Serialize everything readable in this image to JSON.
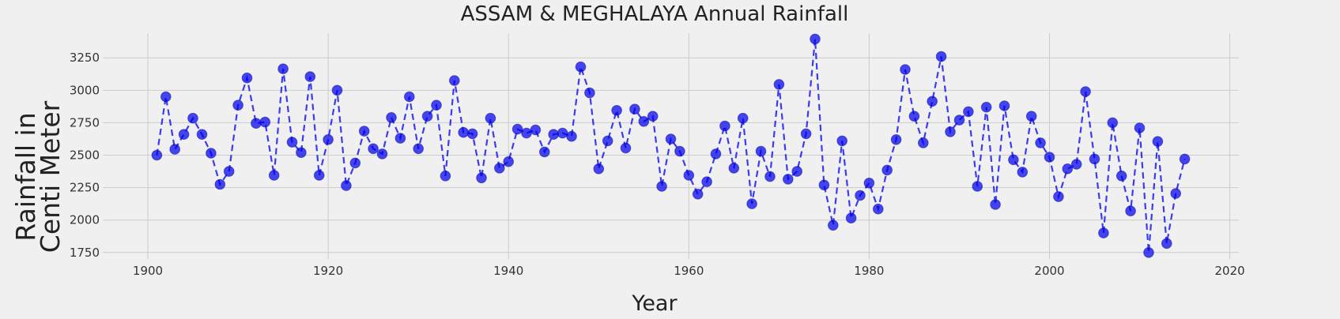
{
  "chart_data": {
    "type": "line",
    "title": "ASSAM & MEGHALAYA Annual Rainfall",
    "xlabel": "Year",
    "ylabel_lines": [
      "Rainfall in",
      "Centi Meter"
    ],
    "xlim": [
      1895,
      2021
    ],
    "ylim": [
      1700,
      3440
    ],
    "xticks": [
      1900,
      1920,
      1940,
      1960,
      1980,
      2000,
      2020
    ],
    "yticks": [
      1750,
      2000,
      2250,
      2500,
      2750,
      3000,
      3250
    ],
    "grid": true,
    "line_style": "dashed",
    "marker": "circle",
    "series_color": "#0000ee",
    "x": [
      1901,
      1902,
      1903,
      1904,
      1905,
      1906,
      1907,
      1908,
      1909,
      1910,
      1911,
      1912,
      1913,
      1914,
      1915,
      1916,
      1917,
      1918,
      1919,
      1920,
      1921,
      1922,
      1923,
      1924,
      1925,
      1926,
      1927,
      1928,
      1929,
      1930,
      1931,
      1932,
      1933,
      1934,
      1935,
      1936,
      1937,
      1938,
      1939,
      1940,
      1941,
      1942,
      1943,
      1944,
      1945,
      1946,
      1947,
      1948,
      1949,
      1950,
      1951,
      1952,
      1953,
      1954,
      1955,
      1956,
      1957,
      1958,
      1959,
      1960,
      1961,
      1962,
      1963,
      1964,
      1965,
      1966,
      1967,
      1968,
      1969,
      1970,
      1971,
      1972,
      1973,
      1974,
      1975,
      1976,
      1977,
      1978,
      1979,
      1980,
      1981,
      1982,
      1983,
      1984,
      1985,
      1986,
      1987,
      1988,
      1989,
      1990,
      1991,
      1992,
      1993,
      1994,
      1995,
      1996,
      1997,
      1998,
      1999,
      2000,
      2001,
      2002,
      2003,
      2004,
      2005,
      2006,
      2007,
      2008,
      2009,
      2010,
      2011,
      2012,
      2013,
      2014,
      2015
    ],
    "y": [
      2500,
      2950,
      2545,
      2660,
      2785,
      2660,
      2515,
      2275,
      2375,
      2885,
      3095,
      2745,
      2755,
      2345,
      3165,
      2600,
      2520,
      3105,
      2345,
      2620,
      3000,
      2265,
      2440,
      2685,
      2550,
      2510,
      2790,
      2630,
      2950,
      2550,
      2800,
      2885,
      2340,
      3075,
      2675,
      2665,
      2325,
      2785,
      2400,
      2450,
      2700,
      2670,
      2695,
      2525,
      2660,
      2670,
      2645,
      3180,
      2980,
      2395,
      2610,
      2845,
      2555,
      2855,
      2760,
      2800,
      2260,
      2625,
      2530,
      2345,
      2200,
      2295,
      2510,
      2725,
      2400,
      2785,
      2125,
      2530,
      2335,
      3045,
      2315,
      2375,
      2665,
      3395,
      2270,
      1960,
      2610,
      2015,
      2190,
      2285,
      2085,
      2385,
      2620,
      3160,
      2800,
      2595,
      2915,
      3260,
      2680,
      2770,
      2835,
      2260,
      2870,
      2120,
      2880,
      2465,
      2370,
      2800,
      2595,
      2485,
      2180,
      2395,
      2430,
      2990,
      2470,
      1900,
      2750,
      2340,
      2070,
      2710,
      1750,
      2605,
      1820,
      2205,
      2470
    ]
  }
}
